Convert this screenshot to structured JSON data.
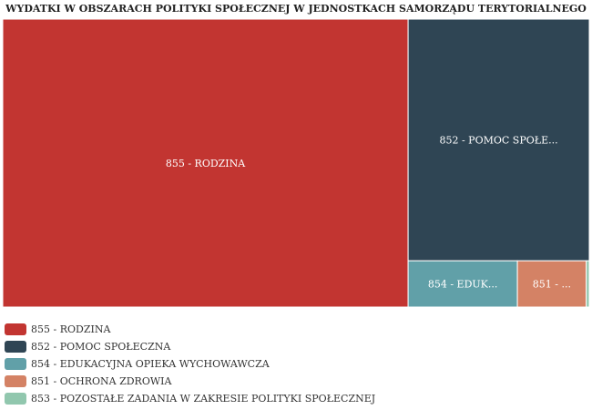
{
  "chart_data": {
    "type": "treemap",
    "title": "WYDATKI W OBSZARACH POLITYKI SPOŁECZNEJ W JEDNOSTKACH SAMORZĄDU TERYTORIALNEGO",
    "items": [
      {
        "label": "855 - RODZINA",
        "tile_label": "855 - RODZINA",
        "value": 506.0,
        "color": "#c23531"
      },
      {
        "label": "852 - POMOC SPOŁECZNA",
        "tile_label": "852 - POMOC SPOŁE...",
        "value": 189.8,
        "color": "#2f4554"
      },
      {
        "label": "854 - EDUKACYJNA OPIEKA WYCHOWAWCZA",
        "tile_label": "854 - EDUK...",
        "value": 21.9,
        "color": "#61a0a8"
      },
      {
        "label": "851 - OCHRONA ZDROWIA",
        "tile_label": "851 - ...",
        "value": 13.8,
        "color": "#d48265"
      },
      {
        "label": "853 - POZOSTAŁE ZADANIA W ZAKRESIE POLITYKI SPOŁECZNEJ",
        "tile_label": "",
        "value": 0.6,
        "color": "#91c7ae"
      }
    ],
    "legend_position": "bottom-left"
  }
}
